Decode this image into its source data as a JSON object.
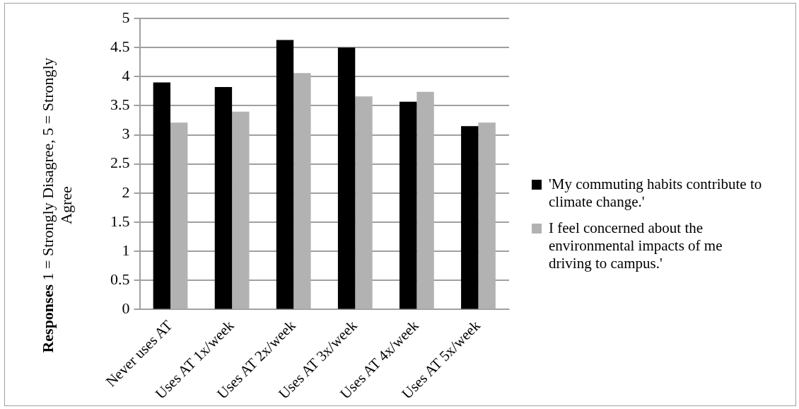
{
  "chart_data": {
    "type": "bar",
    "ylabel": "Responses 1 = Strongly Disagree, 5 = Strongly Agree",
    "categories": [
      "Never uses AT",
      "Uses AT 1x/week",
      "Uses AT 2x/week",
      "Uses AT 3x/week",
      "Uses AT 4x/week",
      "Uses AT 5x/week"
    ],
    "series": [
      {
        "name": "'My commuting habits contribute to climate change.'",
        "color": "#000000",
        "values": [
          3.9,
          3.82,
          4.63,
          4.5,
          3.57,
          3.15
        ]
      },
      {
        "name": "I feel concerned about the environmental impacts of me driving to campus.'",
        "color": "#b2b2b2",
        "values": [
          3.21,
          3.4,
          4.06,
          3.66,
          3.74,
          3.21
        ]
      }
    ],
    "ylim": [
      0,
      5
    ],
    "yticks": [
      0,
      0.5,
      1,
      1.5,
      2,
      2.5,
      3,
      3.5,
      4,
      4.5,
      5
    ],
    "grid": "y",
    "legend": "right"
  }
}
